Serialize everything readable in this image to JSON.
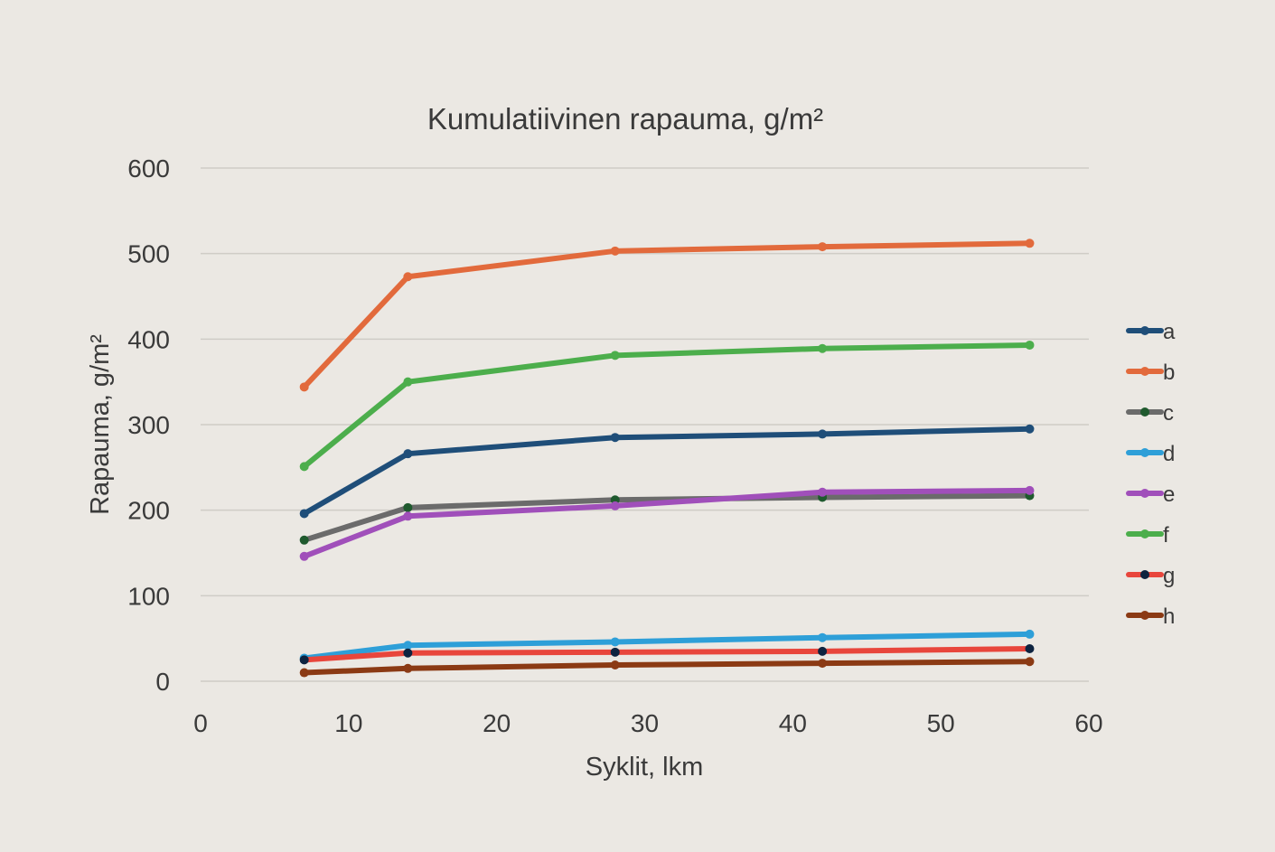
{
  "chart_data": {
    "type": "line",
    "title": "Kumulatiivinen rapauma, g/m²",
    "xlabel": "Syklit, lkm",
    "ylabel": "Rapauma, g/m²",
    "xlim": [
      0,
      60
    ],
    "ylim": [
      0,
      600
    ],
    "x_ticks": [
      0,
      10,
      20,
      30,
      40,
      50,
      60
    ],
    "y_ticks": [
      0,
      100,
      200,
      300,
      400,
      500,
      600
    ],
    "grid": "horizontal",
    "legend_position": "right",
    "background": "#ebe8e3",
    "x": [
      7,
      14,
      28,
      42,
      56
    ],
    "series": [
      {
        "name": "a",
        "color": "#1f4e79",
        "marker_color": "#1f4e79",
        "values": [
          196,
          266,
          285,
          289,
          295
        ]
      },
      {
        "name": "b",
        "color": "#e26a3c",
        "marker_color": "#e26a3c",
        "values": [
          344,
          473,
          503,
          508,
          512
        ]
      },
      {
        "name": "c",
        "color": "#6b6b6b",
        "marker_color": "#1f5a2e",
        "values": [
          165,
          203,
          212,
          215,
          217
        ]
      },
      {
        "name": "d",
        "color": "#2e9fd8",
        "marker_color": "#2e9fd8",
        "values": [
          27,
          42,
          46,
          51,
          55
        ]
      },
      {
        "name": "e",
        "color": "#a04fba",
        "marker_color": "#a04fba",
        "values": [
          146,
          193,
          205,
          221,
          223
        ]
      },
      {
        "name": "f",
        "color": "#4cae4c",
        "marker_color": "#4cae4c",
        "values": [
          251,
          350,
          381,
          389,
          393
        ]
      },
      {
        "name": "g",
        "color": "#e8463c",
        "marker_color": "#0d2340",
        "values": [
          25,
          33,
          34,
          35,
          38
        ]
      },
      {
        "name": "h",
        "color": "#8b3a14",
        "marker_color": "#8b3a14",
        "values": [
          10,
          15,
          19,
          21,
          23
        ]
      }
    ]
  }
}
